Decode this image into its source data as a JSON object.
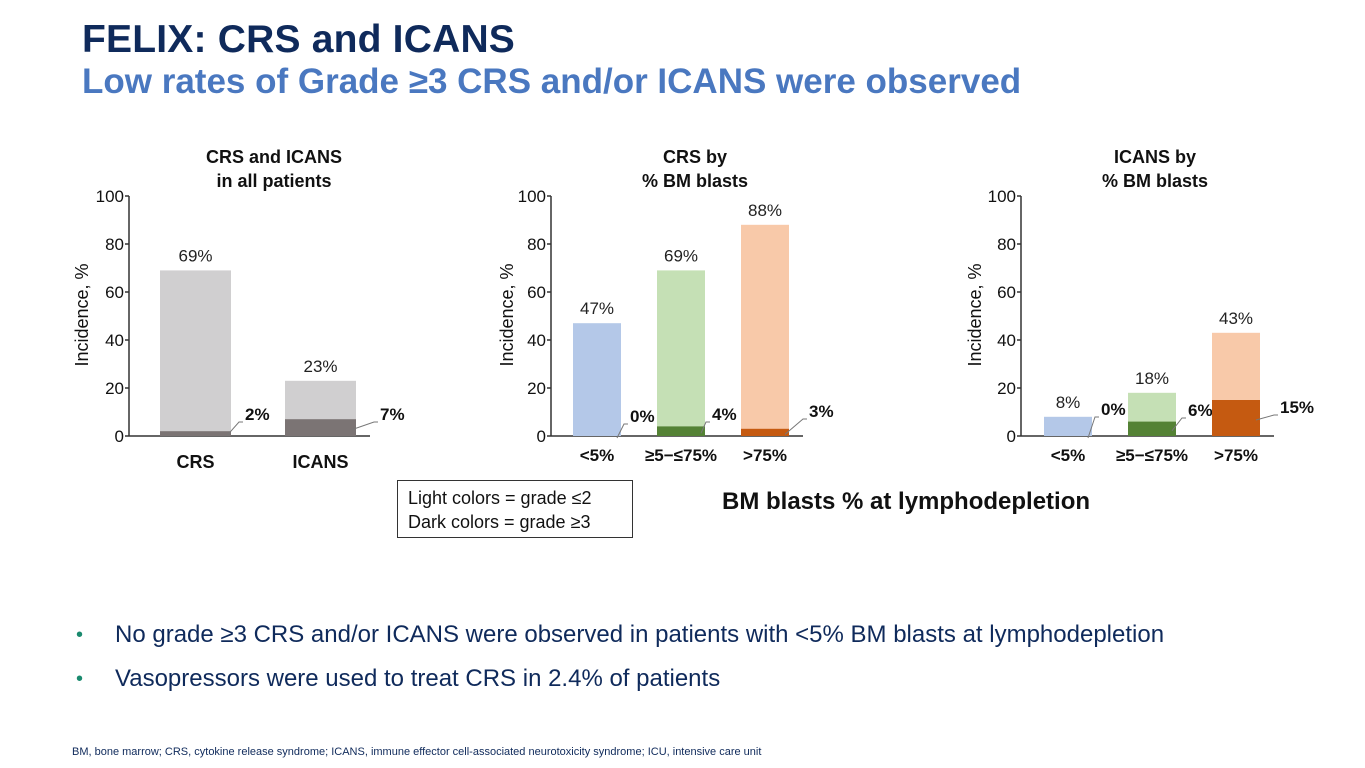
{
  "slide": {
    "title": "FELIX: CRS and ICANS",
    "subtitle": "Low rates of Grade ≥3 CRS and/or ICANS were observed",
    "legend": [
      "Light colors = grade ≤2",
      "Dark colors = grade ≥3"
    ],
    "x_caption": "BM blasts % at lymphodepletion",
    "bullets": [
      "No grade ≥3 CRS and/or ICANS were observed in patients with <5% BM blasts at lymphodepletion",
      "Vasopressors were used to treat CRS in 2.4% of patients"
    ],
    "bullet_symbol": "•",
    "footnote": "BM, bone marrow; CRS, cytokine release syndrome; ICANS, immune effector cell-associated neurotoxicity syndrome; ICU, intensive care unit"
  },
  "colors": {
    "title": "#0f2a5b",
    "subtitle": "#4a78c0",
    "bullet": "#1a8a6e"
  },
  "chart_data": [
    {
      "type": "bar",
      "stacked": "overlay",
      "title": [
        "CRS and ICANS",
        "in all patients"
      ],
      "ylabel": "Incidence, %",
      "ylim": [
        0,
        100
      ],
      "yticks": [
        0,
        20,
        40,
        60,
        80,
        100
      ],
      "categories": [
        "CRS",
        "ICANS"
      ],
      "series": [
        {
          "name": "Grade ≤2 (light)",
          "values": [
            69,
            23
          ],
          "labels": [
            "69%",
            "23%"
          ],
          "colors": [
            "#d0cfd0",
            "#d0cfd0"
          ]
        },
        {
          "name": "Grade ≥3 (dark)",
          "values": [
            2,
            7
          ],
          "labels": [
            "2%",
            "7%"
          ],
          "colors": [
            "#7b7474",
            "#7b7474"
          ]
        }
      ]
    },
    {
      "type": "bar",
      "stacked": "overlay",
      "title": [
        "CRS by",
        "% BM blasts"
      ],
      "ylabel": "Incidence, %",
      "ylim": [
        0,
        100
      ],
      "yticks": [
        0,
        20,
        40,
        60,
        80,
        100
      ],
      "categories": [
        "<5%",
        "≥5−≤75%",
        ">75%"
      ],
      "series": [
        {
          "name": "Grade ≤2 (light)",
          "values": [
            47,
            69,
            88
          ],
          "labels": [
            "47%",
            "69%",
            "88%"
          ],
          "colors": [
            "#b4c8e8",
            "#c5e0b5",
            "#f8c9a9"
          ]
        },
        {
          "name": "Grade ≥3 (dark)",
          "values": [
            0,
            4,
            3
          ],
          "labels": [
            "0%",
            "4%",
            "3%"
          ],
          "colors": [
            "#4472c4",
            "#548235",
            "#c55a11"
          ]
        }
      ]
    },
    {
      "type": "bar",
      "stacked": "overlay",
      "title": [
        "ICANS by",
        "% BM blasts"
      ],
      "ylabel": "Incidence, %",
      "ylim": [
        0,
        100
      ],
      "yticks": [
        0,
        20,
        40,
        60,
        80,
        100
      ],
      "categories": [
        "<5%",
        "≥5−≤75%",
        ">75%"
      ],
      "series": [
        {
          "name": "Grade ≤2 (light)",
          "values": [
            8,
            18,
            43
          ],
          "labels": [
            "8%",
            "18%",
            "43%"
          ],
          "colors": [
            "#b4c8e8",
            "#c5e0b5",
            "#f8c9a9"
          ]
        },
        {
          "name": "Grade ≥3 (dark)",
          "values": [
            0,
            6,
            15
          ],
          "labels": [
            "0%",
            "6%",
            "15%"
          ],
          "colors": [
            "#4472c4",
            "#548235",
            "#c55a11"
          ]
        }
      ]
    }
  ]
}
